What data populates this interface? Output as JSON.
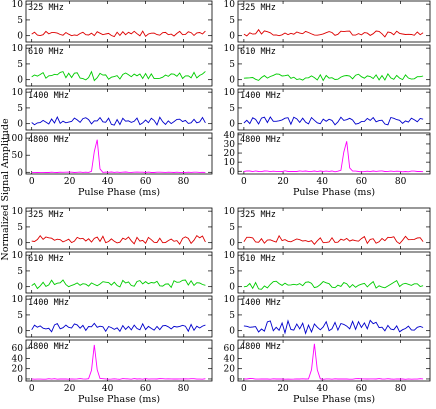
{
  "chart_data": [
    {
      "type": "line",
      "xlabel": "Pulse Phase (ms)",
      "ylabel": "Normalized Signal Amplitude",
      "xlim": [
        -3,
        95
      ],
      "xticks": [
        0,
        20,
        40,
        60,
        80
      ],
      "grid": false,
      "panels": [
        {
          "name": "325 MHz",
          "color": "#dd0000",
          "ylim": [
            -2,
            11
          ],
          "yticks": [
            0,
            5,
            10
          ],
          "noise": 0.55,
          "baseline": 0.6,
          "peaks": []
        },
        {
          "name": "610 MHz",
          "color": "#00cc00",
          "ylim": [
            -2,
            11
          ],
          "yticks": [
            0,
            5,
            10
          ],
          "noise": 0.8,
          "baseline": 1.2,
          "peaks": []
        },
        {
          "name": "1400 MHz",
          "color": "#0000cc",
          "ylim": [
            -2,
            11
          ],
          "yticks": [
            0,
            5,
            10
          ],
          "noise": 0.7,
          "baseline": 0.8,
          "peaks": []
        },
        {
          "name": "4800 MHz",
          "color": "#ff00ff",
          "ylim": [
            -5,
            115
          ],
          "yticks": [
            0,
            50,
            100
          ],
          "noise": 0.5,
          "baseline": 0,
          "peaks": [
            [
              34,
              110
            ]
          ]
        }
      ]
    },
    {
      "type": "line",
      "xlabel": "Pulse Phase (ms)",
      "ylabel": "",
      "xlim": [
        -3,
        95
      ],
      "xticks": [
        0,
        20,
        40,
        60,
        80
      ],
      "grid": false,
      "panels": [
        {
          "name": "325 MHz",
          "color": "#dd0000",
          "ylim": [
            -2,
            11
          ],
          "yticks": [
            0,
            5,
            10
          ],
          "noise": 0.6,
          "baseline": 0.7,
          "peaks": []
        },
        {
          "name": "610 MHz",
          "color": "#00cc00",
          "ylim": [
            -2,
            11
          ],
          "yticks": [
            0,
            5,
            10
          ],
          "noise": 0.6,
          "baseline": 0.8,
          "peaks": []
        },
        {
          "name": "1400 MHz",
          "color": "#0000cc",
          "ylim": [
            -2,
            11
          ],
          "yticks": [
            0,
            5,
            10
          ],
          "noise": 0.75,
          "baseline": 0.8,
          "peaks": []
        },
        {
          "name": "4800 MHz",
          "color": "#ff00ff",
          "ylim": [
            -3,
            42
          ],
          "yticks": [
            0,
            10,
            20,
            30,
            40
          ],
          "noise": 0.3,
          "baseline": 0,
          "peaks": [
            [
              52,
              38
            ]
          ]
        }
      ]
    },
    {
      "type": "line",
      "xlabel": "Pulse Phase (ms)",
      "ylabel": "",
      "xlim": [
        -3,
        95
      ],
      "xticks": [
        0,
        20,
        40,
        60,
        80
      ],
      "grid": false,
      "panels": [
        {
          "name": "325 MHz",
          "color": "#dd0000",
          "ylim": [
            -2,
            11
          ],
          "yticks": [
            0,
            5,
            10
          ],
          "noise": 0.75,
          "baseline": 0.9,
          "peaks": []
        },
        {
          "name": "610 MHz",
          "color": "#00cc00",
          "ylim": [
            -2,
            11
          ],
          "yticks": [
            0,
            5,
            10
          ],
          "noise": 0.75,
          "baseline": 0.9,
          "peaks": []
        },
        {
          "name": "1400 MHz",
          "color": "#0000cc",
          "ylim": [
            -2,
            11
          ],
          "yticks": [
            0,
            5,
            10
          ],
          "noise": 0.75,
          "baseline": 1.0,
          "peaks": []
        },
        {
          "name": "4800 MHz",
          "color": "#ff00ff",
          "ylim": [
            -4,
            76
          ],
          "yticks": [
            0,
            20,
            40,
            60
          ],
          "noise": 0.4,
          "baseline": 0,
          "peaks": [
            [
              33,
              66
            ]
          ]
        }
      ]
    },
    {
      "type": "line",
      "xlabel": "Pulse Phase (ms)",
      "ylabel": "",
      "xlim": [
        -3,
        95
      ],
      "xticks": [
        0,
        20,
        40,
        60,
        80
      ],
      "grid": false,
      "panels": [
        {
          "name": "325 MHz",
          "color": "#dd0000",
          "ylim": [
            -2,
            11
          ],
          "yticks": [
            0,
            5,
            10
          ],
          "noise": 0.7,
          "baseline": 0.8,
          "peaks": []
        },
        {
          "name": "610 MHz",
          "color": "#00cc00",
          "ylim": [
            -2,
            11
          ],
          "yticks": [
            0,
            5,
            10
          ],
          "noise": 0.7,
          "baseline": 0.6,
          "peaks": []
        },
        {
          "name": "1400 MHz",
          "color": "#0000cc",
          "ylim": [
            -2,
            11
          ],
          "yticks": [
            0,
            5,
            10
          ],
          "noise": 1.2,
          "baseline": 1.2,
          "peaks": []
        },
        {
          "name": "4800 MHz",
          "color": "#ff00ff",
          "ylim": [
            -4,
            76
          ],
          "yticks": [
            0,
            20,
            40,
            60
          ],
          "noise": 0.4,
          "baseline": 0,
          "peaks": [
            [
              36,
              68
            ]
          ]
        }
      ]
    }
  ]
}
